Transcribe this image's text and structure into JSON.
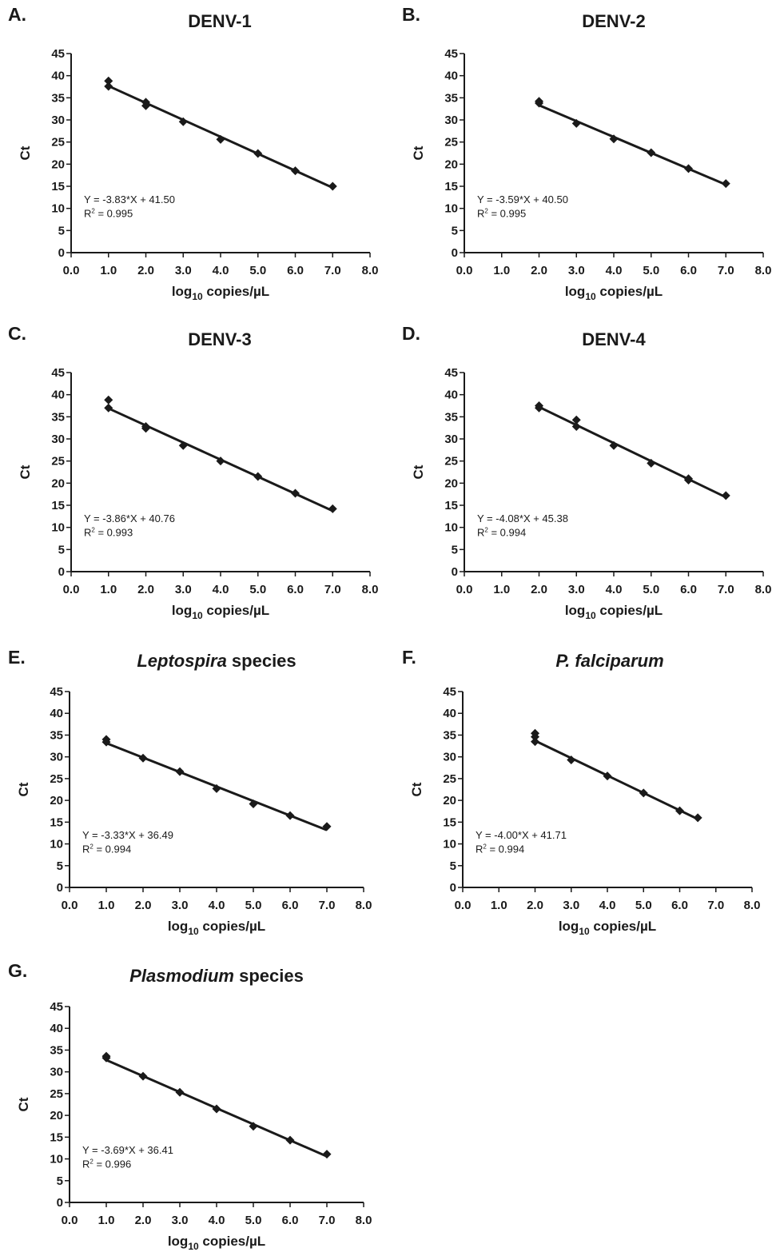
{
  "chart_data": [
    {
      "type": "scatter",
      "panel": "A.",
      "title": "DENV-1",
      "title_italic": "",
      "xlabel": {
        "main": "log",
        "sub": "10",
        "rest": " copies/µL"
      },
      "ylabel": "Ct",
      "xlim": [
        0,
        8
      ],
      "ylim": [
        0,
        45
      ],
      "xticks": [
        "0.0",
        "1.0",
        "2.0",
        "3.0",
        "4.0",
        "5.0",
        "6.0",
        "7.0",
        "8.0"
      ],
      "yticks": [
        "0",
        "5",
        "10",
        "15",
        "20",
        "25",
        "30",
        "35",
        "40",
        "45"
      ],
      "points": [
        [
          1,
          38.8
        ],
        [
          1,
          37.6
        ],
        [
          2,
          34.0
        ],
        [
          2,
          33.2
        ],
        [
          3,
          29.6
        ],
        [
          4,
          25.6
        ],
        [
          5,
          22.4
        ],
        [
          6,
          18.5
        ],
        [
          7,
          15.0
        ]
      ],
      "fit": {
        "slope": -3.83,
        "intercept": 41.5,
        "x_range": [
          1,
          7
        ]
      },
      "equation": "Y = -3.83*X + 41.50",
      "r2_label": "R",
      "r2_sup": "2",
      "r2_value": " = 0.995"
    },
    {
      "type": "scatter",
      "panel": "B.",
      "title": "DENV-2",
      "title_italic": "",
      "xlabel": {
        "main": "log",
        "sub": "10",
        "rest": " copies/µL"
      },
      "ylabel": "Ct",
      "xlim": [
        0,
        8
      ],
      "ylim": [
        0,
        45
      ],
      "xticks": [
        "0.0",
        "1.0",
        "2.0",
        "3.0",
        "4.0",
        "5.0",
        "6.0",
        "7.0",
        "8.0"
      ],
      "yticks": [
        "0",
        "5",
        "10",
        "15",
        "20",
        "25",
        "30",
        "35",
        "40",
        "45"
      ],
      "points": [
        [
          2,
          34.2
        ],
        [
          2,
          33.8
        ],
        [
          3,
          29.2
        ],
        [
          4,
          25.7
        ],
        [
          5,
          22.6
        ],
        [
          6,
          19.0
        ],
        [
          7,
          15.6
        ]
      ],
      "fit": {
        "slope": -3.59,
        "intercept": 40.5,
        "x_range": [
          2,
          7
        ]
      },
      "equation": "Y = -3.59*X + 40.50",
      "r2_label": "R",
      "r2_sup": "2",
      "r2_value": " = 0.995"
    },
    {
      "type": "scatter",
      "panel": "C.",
      "title": "DENV-3",
      "title_italic": "",
      "xlabel": {
        "main": "log",
        "sub": "10",
        "rest": " copies/µL"
      },
      "ylabel": "Ct",
      "xlim": [
        0,
        8
      ],
      "ylim": [
        0,
        45
      ],
      "xticks": [
        "0.0",
        "1.0",
        "2.0",
        "3.0",
        "4.0",
        "5.0",
        "6.0",
        "7.0",
        "8.0"
      ],
      "yticks": [
        "0",
        "5",
        "10",
        "15",
        "20",
        "25",
        "30",
        "35",
        "40",
        "45"
      ],
      "points": [
        [
          1,
          38.8
        ],
        [
          1,
          37.0
        ],
        [
          2,
          32.8
        ],
        [
          2,
          32.4
        ],
        [
          3,
          28.5
        ],
        [
          4,
          25.0
        ],
        [
          5,
          21.5
        ],
        [
          6,
          17.7
        ],
        [
          7,
          14.2
        ]
      ],
      "fit": {
        "slope": -3.86,
        "intercept": 40.76,
        "x_range": [
          1,
          7
        ]
      },
      "equation": "Y = -3.86*X + 40.76",
      "r2_label": "R",
      "r2_sup": "2",
      "r2_value": " = 0.993"
    },
    {
      "type": "scatter",
      "panel": "D.",
      "title": "DENV-4",
      "title_italic": "",
      "xlabel": {
        "main": "log",
        "sub": "10",
        "rest": " copies/µL"
      },
      "ylabel": "Ct",
      "xlim": [
        0,
        8
      ],
      "ylim": [
        0,
        45
      ],
      "xticks": [
        "0.0",
        "1.0",
        "2.0",
        "3.0",
        "4.0",
        "5.0",
        "6.0",
        "7.0",
        "8.0"
      ],
      "yticks": [
        "0",
        "5",
        "10",
        "15",
        "20",
        "25",
        "30",
        "35",
        "40",
        "45"
      ],
      "points": [
        [
          2,
          37.5
        ],
        [
          2,
          37.0
        ],
        [
          3,
          34.3
        ],
        [
          3,
          32.8
        ],
        [
          4,
          28.5
        ],
        [
          5,
          24.5
        ],
        [
          6,
          21.0
        ],
        [
          6,
          20.7
        ],
        [
          7,
          17.2
        ]
      ],
      "fit": {
        "slope": -4.08,
        "intercept": 45.38,
        "x_range": [
          2,
          7
        ]
      },
      "equation": "Y = -4.08*X + 45.38",
      "r2_label": "R",
      "r2_sup": "2",
      "r2_value": " = 0.994"
    },
    {
      "type": "scatter",
      "panel": "E.",
      "title": " species",
      "title_italic": "Leptospira",
      "xlabel": {
        "main": "log",
        "sub": "10",
        "rest": " copies/µL"
      },
      "ylabel": "Ct",
      "xlim": [
        0,
        8
      ],
      "ylim": [
        0,
        45
      ],
      "xticks": [
        "0.0",
        "1.0",
        "2.0",
        "3.0",
        "4.0",
        "5.0",
        "6.0",
        "7.0",
        "8.0"
      ],
      "yticks": [
        "0",
        "5",
        "10",
        "15",
        "20",
        "25",
        "30",
        "35",
        "40",
        "45"
      ],
      "points": [
        [
          1,
          34.0
        ],
        [
          1,
          33.4
        ],
        [
          2,
          29.7
        ],
        [
          3,
          26.6
        ],
        [
          4,
          22.7
        ],
        [
          5,
          19.2
        ],
        [
          6,
          16.5
        ],
        [
          7,
          14.0
        ]
      ],
      "fit": {
        "slope": -3.33,
        "intercept": 36.49,
        "x_range": [
          1,
          7
        ]
      },
      "equation": "Y = -3.33*X + 36.49",
      "r2_label": "R",
      "r2_sup": "2",
      "r2_value": " = 0.994"
    },
    {
      "type": "scatter",
      "panel": "F.",
      "title": "",
      "title_italic": "P. falciparum",
      "xlabel": {
        "main": "log",
        "sub": "10",
        "rest": " copies/µL"
      },
      "ylabel": "Ct",
      "xlim": [
        0,
        8
      ],
      "ylim": [
        0,
        45
      ],
      "xticks": [
        "0.0",
        "1.0",
        "2.0",
        "3.0",
        "4.0",
        "5.0",
        "6.0",
        "7.0",
        "8.0"
      ],
      "yticks": [
        "0",
        "5",
        "10",
        "15",
        "20",
        "25",
        "30",
        "35",
        "40",
        "45"
      ],
      "points": [
        [
          2,
          35.4
        ],
        [
          2,
          34.6
        ],
        [
          2,
          33.5
        ],
        [
          3,
          29.3
        ],
        [
          4,
          25.6
        ],
        [
          5,
          21.7
        ],
        [
          6,
          17.6
        ],
        [
          6.5,
          16.0
        ]
      ],
      "fit": {
        "slope": -4.0,
        "intercept": 41.71,
        "x_range": [
          2,
          6.5
        ]
      },
      "equation": "Y = -4.00*X + 41.71",
      "r2_label": "R",
      "r2_sup": "2",
      "r2_value": " = 0.994"
    },
    {
      "type": "scatter",
      "panel": "G.",
      "title": " species",
      "title_italic": "Plasmodium",
      "xlabel": {
        "main": "log",
        "sub": "10",
        "rest": " copies/µL"
      },
      "ylabel": "Ct",
      "xlim": [
        0,
        8
      ],
      "ylim": [
        0,
        45
      ],
      "xticks": [
        "0.0",
        "1.0",
        "2.0",
        "3.0",
        "4.0",
        "5.0",
        "6.0",
        "7.0",
        "8.0"
      ],
      "yticks": [
        "0",
        "5",
        "10",
        "15",
        "20",
        "25",
        "30",
        "35",
        "40",
        "45"
      ],
      "points": [
        [
          1,
          33.6
        ],
        [
          1,
          33.2
        ],
        [
          2,
          29.0
        ],
        [
          3,
          25.3
        ],
        [
          4,
          21.5
        ],
        [
          5,
          17.5
        ],
        [
          6,
          14.3
        ],
        [
          7,
          11.1
        ]
      ],
      "fit": {
        "slope": -3.69,
        "intercept": 36.41,
        "x_range": [
          1,
          7
        ]
      },
      "equation": "Y = -3.69*X + 36.41",
      "r2_label": "R",
      "r2_sup": "2",
      "r2_value": " = 0.996"
    }
  ]
}
